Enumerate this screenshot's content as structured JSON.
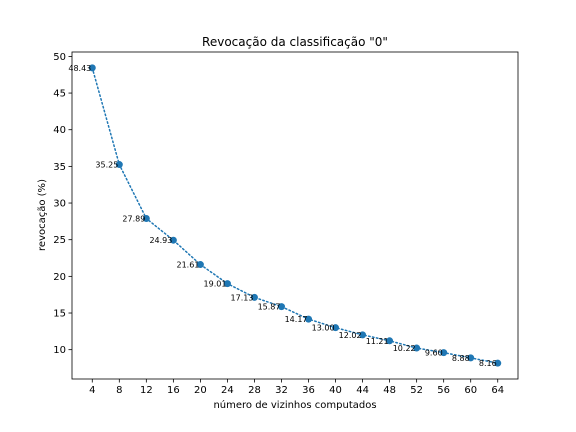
{
  "chart_data": {
    "type": "line",
    "title": "Revocação da classificação \"0\"",
    "xlabel": "número de vizinhos computados",
    "ylabel": "revocação (%)",
    "x": [
      4,
      8,
      12,
      16,
      20,
      24,
      28,
      32,
      36,
      40,
      44,
      48,
      52,
      56,
      60,
      64
    ],
    "xticks": [
      4,
      8,
      12,
      16,
      20,
      24,
      28,
      32,
      36,
      40,
      44,
      48,
      52,
      56,
      60,
      64
    ],
    "yticks": [
      10,
      15,
      20,
      25,
      30,
      35,
      40,
      45,
      50
    ],
    "xlim": [
      1,
      67
    ],
    "ylim": [
      6,
      50.6
    ],
    "grid": false,
    "series": [
      {
        "values": [
          48.43,
          35.25,
          27.89,
          24.93,
          21.61,
          19.01,
          17.13,
          15.87,
          14.17,
          13.0,
          12.02,
          11.21,
          10.22,
          9.6,
          8.88,
          8.16
        ],
        "labels": [
          "48.43",
          "35.25",
          "27.89",
          "24.93",
          "21.61",
          "19.01",
          "17.13",
          "15.87",
          "14.17",
          "13.00",
          "12.02",
          "11.21",
          "10.22",
          "9.60",
          "8.88",
          "8.16"
        ],
        "color": "#1f77b4",
        "line_style": "dotted",
        "marker": "circle"
      }
    ]
  }
}
